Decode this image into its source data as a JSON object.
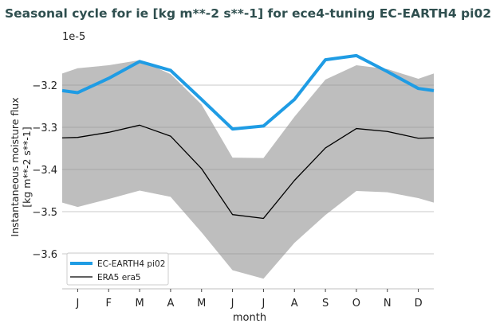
{
  "chart_data": {
    "type": "line",
    "title": "Seasonal cycle for ie [kg m**-2 s**-1] for ece4-tuning EC-EARTH4 pi02",
    "xlabel": "month",
    "ylabel": "Instantaneous moisture flux\n[kg m**-2 s**-1]",
    "y_offset_label": "1e-5",
    "categories": [
      "J",
      "F",
      "M",
      "A",
      "M",
      "J",
      "J",
      "A",
      "S",
      "O",
      "N",
      "D"
    ],
    "ylim": [
      -3.683,
      -3.102
    ],
    "yticks": [
      -3.2,
      -3.3,
      -3.4,
      -3.5,
      -3.6
    ],
    "ytick_labels": [
      "−3.2",
      "−3.3",
      "−3.4",
      "−3.5",
      "−3.6"
    ],
    "grid": "horizontal",
    "legend": "bottom-left",
    "series": [
      {
        "name": "EC-EARTH4 pi02",
        "color": "#1f9ce4",
        "values": [
          -3.218,
          -3.184,
          -3.144,
          -3.165,
          -3.234,
          -3.304,
          -3.297,
          -3.234,
          -3.14,
          -3.13,
          -3.168,
          -3.208
        ]
      },
      {
        "name": "ERA5 era5",
        "color": "#000000",
        "values": [
          -3.324,
          -3.312,
          -3.295,
          -3.321,
          -3.398,
          -3.507,
          -3.516,
          -3.426,
          -3.349,
          -3.303,
          -3.31,
          -3.326
        ]
      }
    ],
    "band": {
      "color": "#bebebe",
      "upper": [
        -3.16,
        -3.153,
        -3.141,
        -3.174,
        -3.246,
        -3.372,
        -3.373,
        -3.275,
        -3.187,
        -3.153,
        -3.162,
        -3.185
      ],
      "lower": [
        -3.489,
        -3.47,
        -3.45,
        -3.465,
        -3.549,
        -3.639,
        -3.659,
        -3.574,
        -3.508,
        -3.451,
        -3.454,
        -3.468
      ]
    }
  }
}
